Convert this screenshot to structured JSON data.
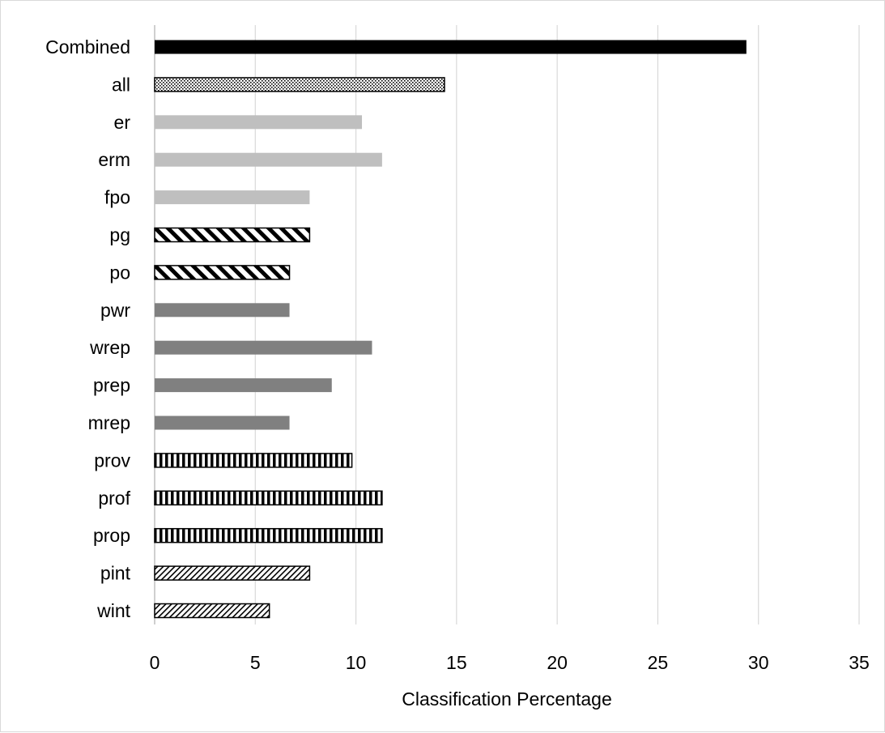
{
  "chart_data": {
    "type": "bar",
    "orientation": "horizontal",
    "categories": [
      "Combined",
      "all",
      "er",
      "erm",
      "fpo",
      "pg",
      "po",
      "pwr",
      "wrep",
      "prep",
      "mrep",
      "prov",
      "prof",
      "prop",
      "pint",
      "wint"
    ],
    "values": [
      29.4,
      14.4,
      10.3,
      11.3,
      7.7,
      7.7,
      6.7,
      6.7,
      10.8,
      8.8,
      6.7,
      9.8,
      11.3,
      11.3,
      7.7,
      5.7
    ],
    "styles": [
      "solid-black",
      "dotted",
      "light-gray",
      "light-gray",
      "light-gray",
      "diagonal-stripe",
      "diagonal-stripe",
      "dark-gray",
      "dark-gray",
      "dark-gray",
      "dark-gray",
      "vertical-stripe",
      "vertical-stripe",
      "vertical-stripe",
      "fine-hatch",
      "fine-hatch"
    ],
    "colors": {
      "solid_black": "#000000",
      "light_gray": "#bfbfbf",
      "dark_gray": "#808080",
      "gridline": "#d9d9d9",
      "axis": "#bfbfbf"
    },
    "xlabel": "Classification Percentage",
    "ylabel": "",
    "title": "",
    "xlim": [
      0,
      35
    ],
    "xticks": [
      "0",
      "5",
      "10",
      "15",
      "20",
      "25",
      "30",
      "35"
    ],
    "grid": true,
    "legend": "none"
  }
}
